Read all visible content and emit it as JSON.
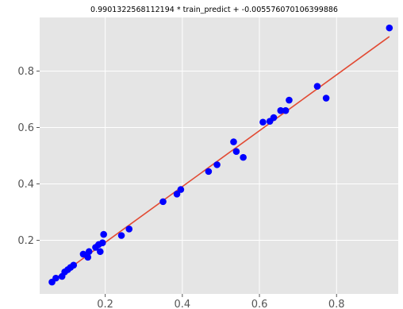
{
  "chart_data": {
    "type": "scatter",
    "title": "0.9901322568112194 * train_predict + -0.005576070106399886",
    "xlabel": "",
    "ylabel": "",
    "xlim": [
      0.03,
      0.96
    ],
    "ylim": [
      0.01,
      0.99
    ],
    "xticks": [
      0.2,
      0.4,
      0.6,
      0.8
    ],
    "xtick_labels": [
      "0.2",
      "0.4",
      "0.6",
      "0.8"
    ],
    "yticks": [
      0.2,
      0.4,
      0.6,
      0.8
    ],
    "ytick_labels": [
      "0.2",
      "0.4",
      "0.6",
      "0.8"
    ],
    "grid": true,
    "background": "#e5e5e5",
    "point_color": "#0000ff",
    "line_color": "#e24a33",
    "fit_line": {
      "slope": 0.9901322568112194,
      "intercept": -0.005576070106399886,
      "x_range": [
        0.062,
        0.937
      ]
    },
    "points": [
      {
        "x": 0.062,
        "y": 0.052
      },
      {
        "x": 0.072,
        "y": 0.066
      },
      {
        "x": 0.088,
        "y": 0.072
      },
      {
        "x": 0.095,
        "y": 0.088
      },
      {
        "x": 0.103,
        "y": 0.096
      },
      {
        "x": 0.11,
        "y": 0.104
      },
      {
        "x": 0.118,
        "y": 0.112
      },
      {
        "x": 0.143,
        "y": 0.151
      },
      {
        "x": 0.155,
        "y": 0.14
      },
      {
        "x": 0.158,
        "y": 0.16
      },
      {
        "x": 0.175,
        "y": 0.175
      },
      {
        "x": 0.183,
        "y": 0.185
      },
      {
        "x": 0.187,
        "y": 0.16
      },
      {
        "x": 0.193,
        "y": 0.191
      },
      {
        "x": 0.196,
        "y": 0.221
      },
      {
        "x": 0.242,
        "y": 0.217
      },
      {
        "x": 0.262,
        "y": 0.24
      },
      {
        "x": 0.35,
        "y": 0.337
      },
      {
        "x": 0.386,
        "y": 0.364
      },
      {
        "x": 0.396,
        "y": 0.38
      },
      {
        "x": 0.468,
        "y": 0.444
      },
      {
        "x": 0.49,
        "y": 0.468
      },
      {
        "x": 0.533,
        "y": 0.549
      },
      {
        "x": 0.54,
        "y": 0.515
      },
      {
        "x": 0.558,
        "y": 0.494
      },
      {
        "x": 0.609,
        "y": 0.619
      },
      {
        "x": 0.627,
        "y": 0.622
      },
      {
        "x": 0.637,
        "y": 0.635
      },
      {
        "x": 0.655,
        "y": 0.66
      },
      {
        "x": 0.668,
        "y": 0.66
      },
      {
        "x": 0.677,
        "y": 0.697
      },
      {
        "x": 0.75,
        "y": 0.746
      },
      {
        "x": 0.773,
        "y": 0.704
      },
      {
        "x": 0.937,
        "y": 0.953
      }
    ]
  }
}
